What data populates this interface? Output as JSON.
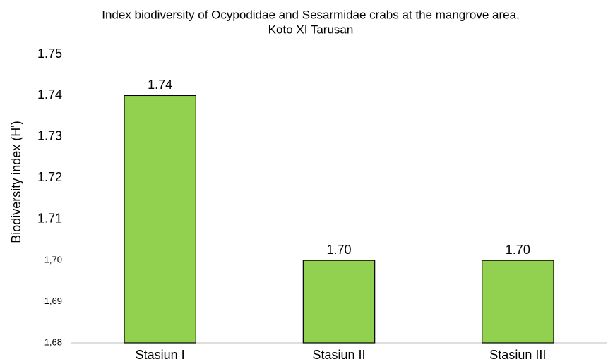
{
  "chart_data": {
    "type": "bar",
    "title": [
      "Index biodiversity of Ocypodidae and Sesarmidae crabs at the mangrove area,",
      "Koto XI Tarusan"
    ],
    "y_label": "Biodiversity index (H')",
    "categories": [
      "Stasiun I",
      "Stasiun II",
      "Stasiun III"
    ],
    "values": [
      1.74,
      1.7,
      1.7
    ],
    "value_labels": [
      "1.74",
      "1.70",
      "1.70"
    ],
    "color": "#92d050",
    "ylim": [
      1.68,
      1.75
    ],
    "yticks": [
      {
        "value": 1.68,
        "label": "1,68"
      },
      {
        "value": 1.69,
        "label": "1,69"
      },
      {
        "value": 1.7,
        "label": "1,70"
      },
      1.71,
      1.72,
      1.73,
      1.74,
      1.75
    ],
    "grid": false
  }
}
